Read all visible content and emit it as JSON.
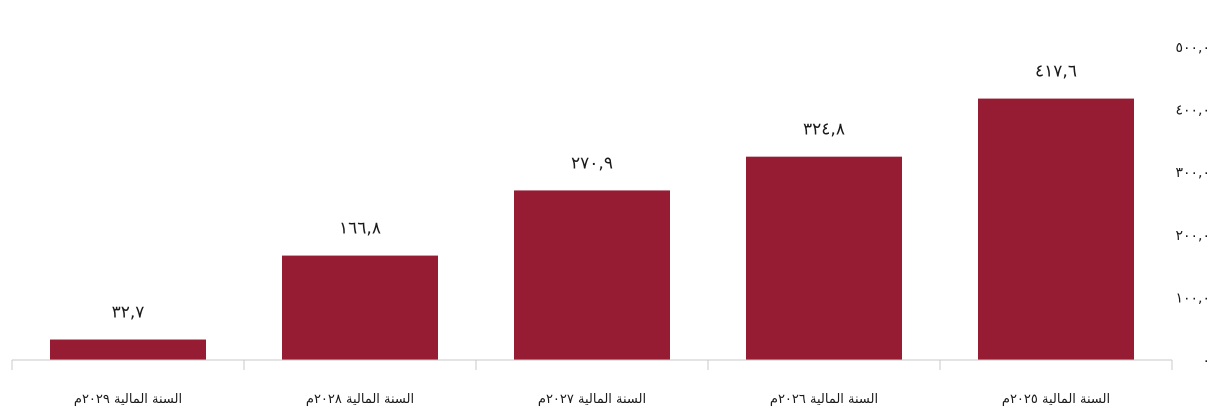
{
  "chart_data": {
    "type": "bar",
    "direction": "rtl",
    "categories": [
      "السنة المالية ٢٠٢٥م",
      "السنة المالية ٢٠٢٦م",
      "السنة المالية ٢٠٢٧م",
      "السنة المالية ٢٠٢٨م",
      "السنة المالية ٢٠٢٩م"
    ],
    "values": [
      417.6,
      324.8,
      270.9,
      166.8,
      32.7
    ],
    "data_labels": [
      "٤١٧,٦",
      "٣٢٤,٨",
      "٢٧٠,٩",
      "١٦٦,٨",
      "٣٢,٧"
    ],
    "ylim": [
      0,
      500
    ],
    "y_ticks": [
      0,
      100,
      200,
      300,
      400,
      500
    ],
    "y_tick_labels": [
      "٠",
      "١٠٠,٠",
      "٢٠٠,٠",
      "٣٠٠,٠",
      "٤٠٠,٠",
      "٥٠٠,٠"
    ],
    "y_axis_position": "right",
    "grid": false,
    "legend": "none",
    "bar_color": "#951C33",
    "axis_color": "#c8c8c8"
  }
}
